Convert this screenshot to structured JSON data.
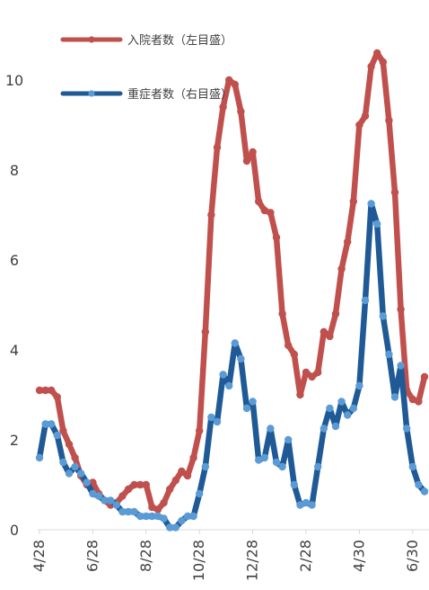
{
  "chart_data": {
    "type": "line",
    "title": "",
    "xlabel": "",
    "ylabel": "",
    "ylim": [
      0,
      10.8
    ],
    "yticks": [
      0,
      2,
      4,
      6,
      8,
      10
    ],
    "x_tick_labels": [
      "4/28",
      "6/28",
      "8/28",
      "10/28",
      "12/28",
      "2/28",
      "4/30",
      "6/30"
    ],
    "x_tick_index": [
      0,
      9,
      18,
      27,
      36,
      45,
      54,
      63
    ],
    "legend_position": "top-left",
    "series": [
      {
        "name": "入院者数（左目盛）",
        "color": "#c0504d",
        "values": [
          3.1,
          3.1,
          3.1,
          2.95,
          2.2,
          1.9,
          1.6,
          1.2,
          1.0,
          1.05,
          0.8,
          0.65,
          0.55,
          0.6,
          0.75,
          0.9,
          1.0,
          1.0,
          1.0,
          0.5,
          0.45,
          0.6,
          0.9,
          1.1,
          1.3,
          1.2,
          1.6,
          2.2,
          4.4,
          7.0,
          8.5,
          9.4,
          10.0,
          9.9,
          9.3,
          8.2,
          8.4,
          7.3,
          7.1,
          7.05,
          6.5,
          4.8,
          4.1,
          3.9,
          3.0,
          3.5,
          3.4,
          3.5,
          4.4,
          4.3,
          4.8,
          5.8,
          6.4,
          7.3,
          9.0,
          9.2,
          10.3,
          10.6,
          10.4,
          9.1,
          7.5,
          4.9,
          3.1,
          2.9,
          2.85,
          3.4
        ]
      },
      {
        "name": "重症者数（右目盛）",
        "color": "#1f5a96",
        "values": [
          1.6,
          2.35,
          2.35,
          2.1,
          1.5,
          1.25,
          1.4,
          1.25,
          1.05,
          0.8,
          0.75,
          0.65,
          0.65,
          0.55,
          0.4,
          0.4,
          0.4,
          0.3,
          0.3,
          0.3,
          0.3,
          0.25,
          0.05,
          0.05,
          0.2,
          0.3,
          0.3,
          0.8,
          1.4,
          2.5,
          2.4,
          3.45,
          3.2,
          4.15,
          3.8,
          2.7,
          2.85,
          1.55,
          1.6,
          2.25,
          1.5,
          1.4,
          2.0,
          1.0,
          0.55,
          0.6,
          0.55,
          1.4,
          2.25,
          2.7,
          2.3,
          2.85,
          2.55,
          2.7,
          3.2,
          5.1,
          7.25,
          6.8,
          4.75,
          3.9,
          2.95,
          3.65,
          2.25,
          1.4,
          1.0,
          0.85
        ]
      }
    ]
  }
}
